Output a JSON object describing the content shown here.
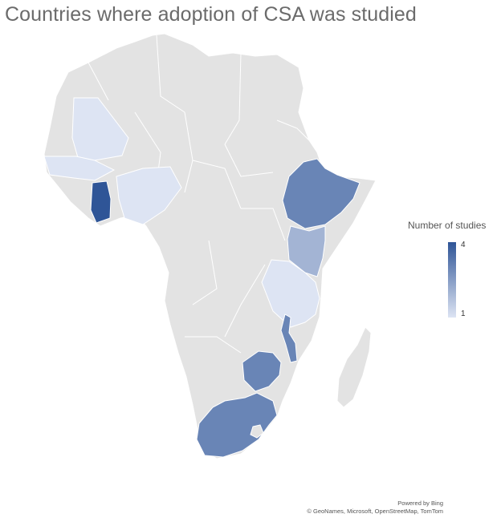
{
  "title": "Countries where adoption of CSA was studied",
  "legend": {
    "title": "Number of studies",
    "min_label": "1",
    "max_label": "4",
    "color_min": "#dde4f3",
    "color_max": "#2f5597"
  },
  "attribution": {
    "powered": "Powered by Bing",
    "credits": "© GeoNames, Microsoft, OpenStreetMap, TomTom"
  },
  "colors": {
    "land": "#e3e3e3",
    "border": "#ffffff",
    "background": "#ffffff"
  },
  "map_data": {
    "type": "choropleth",
    "region": "Africa",
    "value_label": "Number of studies",
    "highlighted_countries": [
      {
        "name": "Mali",
        "value": 1
      },
      {
        "name": "Burkina Faso",
        "value": 1
      },
      {
        "name": "Ghana",
        "value": 4
      },
      {
        "name": "Nigeria",
        "value": 1
      },
      {
        "name": "Ethiopia",
        "value": 3
      },
      {
        "name": "Kenya",
        "value": 2
      },
      {
        "name": "Tanzania",
        "value": 1
      },
      {
        "name": "Malawi",
        "value": 3
      },
      {
        "name": "Zimbabwe",
        "value": 3
      },
      {
        "name": "South Africa",
        "value": 3
      }
    ]
  }
}
